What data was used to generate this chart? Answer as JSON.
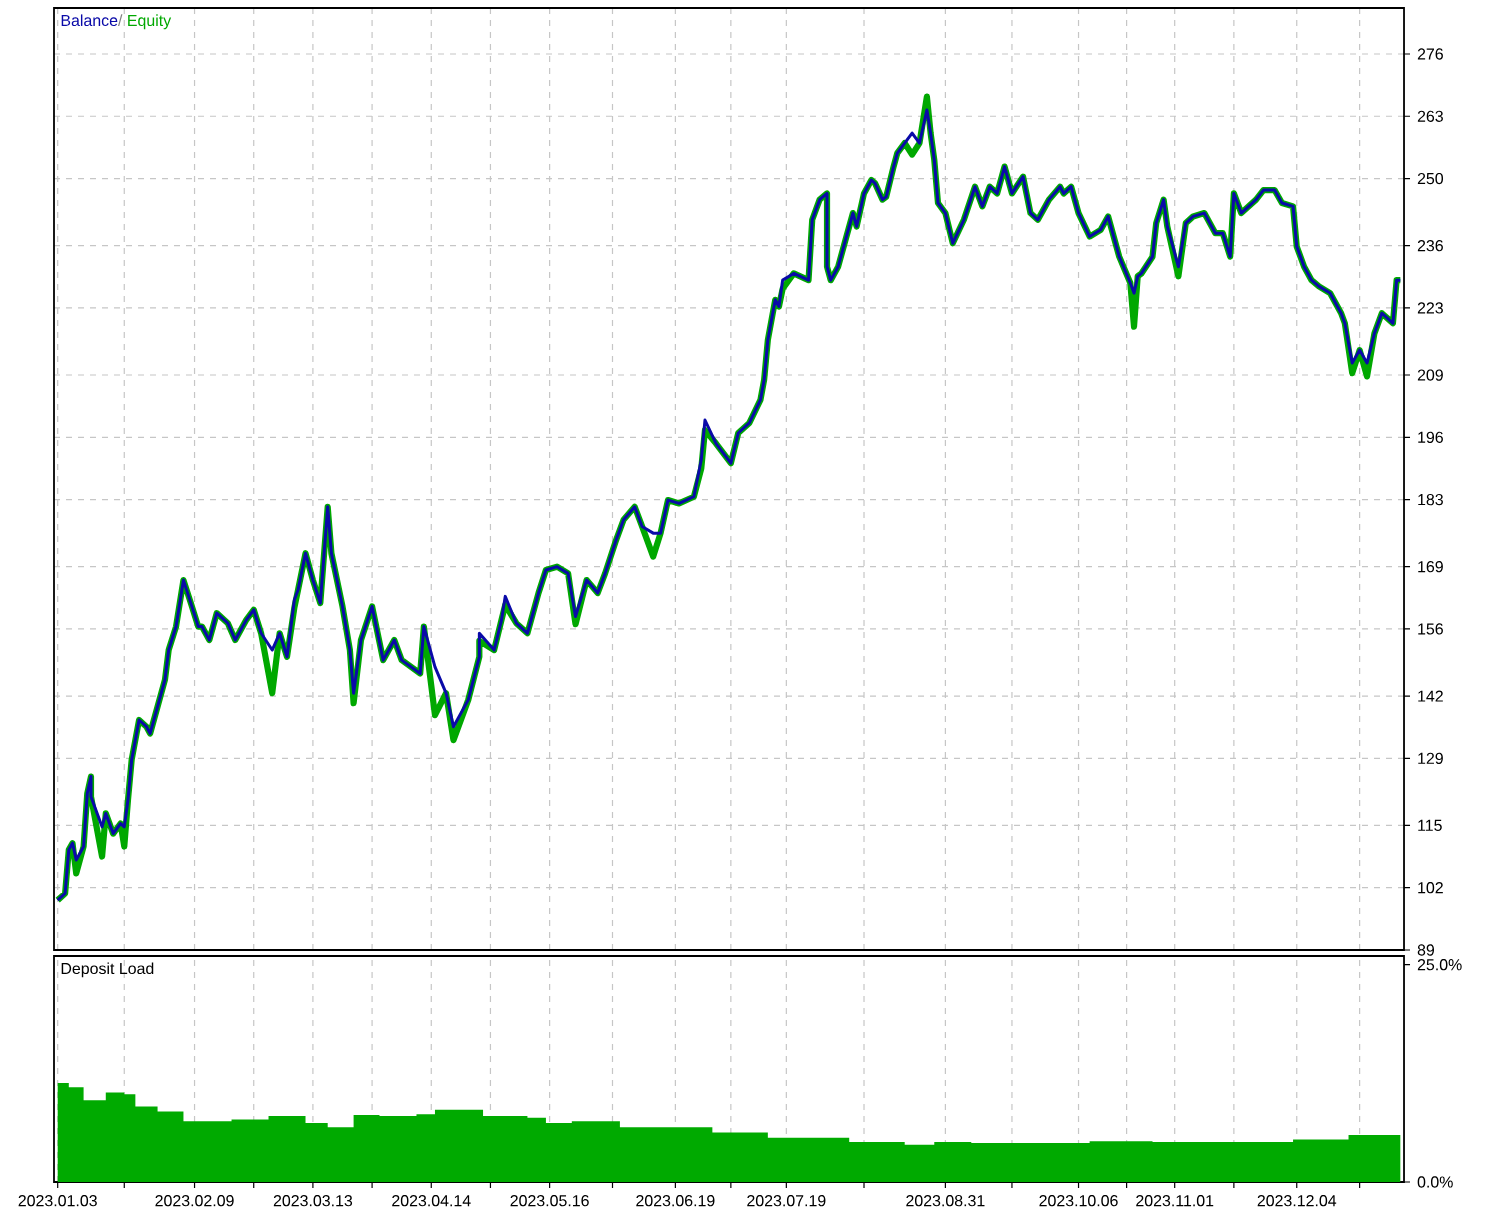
{
  "chart_data": [
    {
      "type": "line",
      "legend": "top left",
      "grid": true,
      "tick_labels": "y",
      "annotations": [
        "/"
      ],
      "x": [
        "2023-01-03",
        "2023-01-05",
        "2023-01-06",
        "2023-01-07",
        "2023-01-08",
        "2023-01-10",
        "2023-01-11",
        "2023-01-12",
        "2023-01-12",
        "2023-01-15",
        "2023-01-16",
        "2023-01-18",
        "2023-01-20",
        "2023-01-21",
        "2023-01-22",
        "2023-01-23",
        "2023-01-25",
        "2023-01-27",
        "2023-01-28",
        "2023-01-30",
        "2023-02-01",
        "2023-02-02",
        "2023-02-04",
        "2023-02-06",
        "2023-02-08",
        "2023-02-10",
        "2023-02-11",
        "2023-02-13",
        "2023-02-15",
        "2023-02-18",
        "2023-02-20",
        "2023-02-23",
        "2023-02-25",
        "2023-02-27",
        "2023-03-02",
        "2023-03-04",
        "2023-03-06",
        "2023-03-08",
        "2023-03-09",
        "2023-03-11",
        "2023-03-13",
        "2023-03-15",
        "2023-03-17",
        "2023-03-18",
        "2023-03-21",
        "2023-03-23",
        "2023-03-24",
        "2023-03-26",
        "2023-03-29",
        "2023-04-01",
        "2023-04-04",
        "2023-04-06",
        "2023-04-11",
        "2023-04-12",
        "2023-04-15",
        "2023-04-18",
        "2023-04-20",
        "2023-04-24",
        "2023-04-27",
        "2023-04-27",
        "2023-05-01",
        "2023-05-03",
        "2023-05-04",
        "2023-05-07",
        "2023-05-10",
        "2023-05-13",
        "2023-05-15",
        "2023-05-18",
        "2023-05-21",
        "2023-05-23",
        "2023-05-26",
        "2023-05-29",
        "2023-05-31",
        "2023-06-03",
        "2023-06-05",
        "2023-06-08",
        "2023-06-10",
        "2023-06-13",
        "2023-06-15",
        "2023-06-17",
        "2023-06-20",
        "2023-06-24",
        "2023-06-26",
        "2023-06-27",
        "2023-06-30",
        "2023-07-04",
        "2023-07-06",
        "2023-07-09",
        "2023-07-12",
        "2023-07-13",
        "2023-07-14",
        "2023-07-16",
        "2023-07-17",
        "2023-07-18",
        "2023-07-21",
        "2023-07-25",
        "2023-07-26",
        "2023-07-28",
        "2023-07-30",
        "2023-07-30",
        "2023-07-31",
        "2023-08-02",
        "2023-08-04",
        "2023-08-06",
        "2023-08-07",
        "2023-08-09",
        "2023-08-11",
        "2023-08-12",
        "2023-08-14",
        "2023-08-15",
        "2023-08-17",
        "2023-08-18",
        "2023-08-20",
        "2023-08-22",
        "2023-08-24",
        "2023-08-26",
        "2023-08-27",
        "2023-08-28",
        "2023-08-29",
        "2023-08-31",
        "2023-09-02",
        "2023-09-05",
        "2023-09-08",
        "2023-09-10",
        "2023-09-12",
        "2023-09-14",
        "2023-09-16",
        "2023-09-18",
        "2023-09-21",
        "2023-09-23",
        "2023-09-25",
        "2023-09-28",
        "2023-10-01",
        "2023-10-02",
        "2023-10-04",
        "2023-10-06",
        "2023-10-09",
        "2023-10-12",
        "2023-10-14",
        "2023-10-17",
        "2023-10-20",
        "2023-10-21",
        "2023-10-22",
        "2023-10-23",
        "2023-10-26",
        "2023-10-27",
        "2023-10-29",
        "2023-10-30",
        "2023-11-02",
        "2023-11-04",
        "2023-11-06",
        "2023-11-09",
        "2023-11-12",
        "2023-11-14",
        "2023-11-16",
        "2023-11-17",
        "2023-11-19",
        "2023-11-23",
        "2023-11-25",
        "2023-11-28",
        "2023-11-30",
        "2023-12-03",
        "2023-12-04",
        "2023-12-06",
        "2023-12-08",
        "2023-12-10",
        "2023-12-13",
        "2023-12-16",
        "2023-12-17",
        "2023-12-19",
        "2023-12-21",
        "2023-12-23",
        "2023-12-25",
        "2023-12-27",
        "2023-12-29",
        "2023-12-30",
        "2023-12-31",
        "2024-01-01"
      ],
      "series": [
        {
          "name": "Balance",
          "color": "#0a0aa8",
          "values": [
            99.4,
            100.8,
            109.9,
            111.3,
            107.8,
            110.6,
            121.7,
            125.2,
            121.0,
            114.7,
            117.5,
            113.3,
            115.4,
            114.7,
            120.3,
            128.7,
            137.0,
            135.6,
            134.2,
            139.8,
            145.4,
            151.6,
            156.5,
            166.2,
            161.4,
            156.5,
            156.5,
            153.7,
            159.3,
            157.2,
            153.7,
            157.9,
            160.0,
            155.1,
            151.6,
            155.1,
            150.2,
            162.1,
            164.2,
            171.8,
            166.2,
            161.4,
            181.5,
            171.8,
            160.7,
            151.6,
            142.6,
            153.7,
            160.7,
            149.5,
            153.7,
            149.5,
            146.7,
            156.5,
            148.1,
            142.6,
            135.6,
            141.2,
            150.2,
            155.1,
            151.6,
            157.9,
            162.8,
            157.2,
            155.1,
            163.5,
            168.3,
            169.0,
            167.6,
            158.6,
            166.2,
            163.5,
            167.6,
            174.6,
            178.8,
            181.5,
            177.4,
            176.0,
            176.0,
            182.9,
            182.2,
            183.6,
            191.3,
            199.6,
            194.7,
            190.6,
            196.9,
            199.0,
            203.8,
            208.0,
            216.3,
            224.7,
            223.3,
            228.8,
            230.2,
            228.8,
            241.4,
            245.6,
            246.9,
            231.6,
            228.8,
            231.6,
            237.2,
            242.8,
            240.0,
            246.9,
            249.7,
            249.0,
            245.6,
            246.2,
            252.5,
            255.3,
            257.4,
            259.5,
            257.4,
            264.3,
            259.5,
            253.9,
            244.9,
            242.8,
            236.5,
            241.4,
            248.3,
            244.2,
            248.3,
            246.9,
            252.5,
            246.9,
            250.4,
            242.8,
            241.4,
            245.6,
            248.3,
            246.9,
            248.3,
            242.8,
            237.9,
            239.3,
            242.1,
            233.7,
            228.2,
            226.1,
            229.6,
            230.2,
            233.7,
            240.7,
            245.6,
            240.0,
            231.6,
            240.7,
            242.1,
            242.8,
            238.6,
            238.6,
            233.7,
            246.9,
            242.8,
            245.6,
            247.6,
            247.6,
            244.9,
            244.2,
            235.8,
            231.6,
            228.8,
            227.5,
            226.1,
            221.9,
            219.8,
            211.5,
            214.2,
            211.5,
            217.7,
            221.9,
            220.5,
            219.8,
            228.8,
            228.8
          ]
        },
        {
          "name": "Equity",
          "color": "#00a800",
          "values": [
            99.4,
            100.8,
            109.9,
            111.3,
            105.0,
            110.6,
            121.7,
            125.2,
            121.0,
            108.5,
            117.5,
            113.3,
            115.4,
            110.6,
            120.3,
            128.7,
            137.0,
            135.6,
            134.2,
            139.8,
            145.4,
            151.6,
            156.5,
            166.2,
            161.4,
            156.5,
            156.5,
            153.7,
            159.3,
            157.2,
            153.7,
            157.9,
            160.0,
            155.1,
            142.6,
            155.1,
            150.2,
            160.5,
            164.2,
            171.8,
            166.2,
            161.4,
            181.5,
            171.8,
            160.7,
            151.6,
            140.5,
            153.7,
            160.7,
            149.5,
            153.7,
            149.5,
            146.7,
            156.5,
            138.0,
            142.6,
            132.8,
            141.2,
            150.2,
            153.5,
            151.6,
            157.9,
            161.0,
            157.2,
            155.1,
            163.5,
            168.3,
            169.0,
            167.6,
            157.0,
            166.2,
            163.5,
            167.6,
            174.6,
            178.8,
            181.5,
            177.4,
            171.1,
            176.0,
            182.9,
            182.2,
            183.6,
            189.5,
            197.5,
            194.7,
            190.6,
            196.9,
            199.0,
            203.8,
            208.0,
            216.3,
            224.7,
            223.3,
            227.0,
            230.2,
            228.8,
            241.4,
            245.6,
            246.9,
            231.6,
            228.8,
            231.6,
            237.2,
            242.8,
            240.0,
            246.9,
            249.7,
            249.0,
            245.6,
            246.2,
            252.5,
            255.3,
            257.4,
            255.0,
            257.4,
            267.1,
            259.5,
            253.9,
            244.9,
            242.8,
            236.5,
            241.4,
            248.3,
            244.2,
            248.3,
            246.9,
            252.5,
            246.9,
            250.4,
            242.8,
            241.4,
            245.6,
            248.3,
            246.9,
            248.3,
            242.8,
            237.9,
            239.3,
            242.1,
            233.7,
            228.2,
            219.1,
            229.6,
            230.2,
            233.7,
            240.7,
            245.6,
            240.0,
            229.6,
            240.7,
            242.1,
            242.8,
            238.6,
            238.6,
            233.7,
            246.9,
            242.8,
            245.6,
            247.6,
            247.6,
            244.9,
            244.2,
            235.8,
            231.6,
            228.8,
            227.5,
            226.1,
            221.9,
            219.8,
            209.4,
            214.2,
            208.7,
            217.7,
            221.9,
            220.5,
            219.8,
            228.8,
            228.8
          ]
        }
      ],
      "xlim": [
        "2023-01-02",
        "2024-01-02"
      ],
      "xticks": [
        {
          "value": "2023-01-03",
          "label": null
        },
        {
          "value": "2023-01-21",
          "label": null
        },
        {
          "value": "2023-02-09",
          "label": null
        },
        {
          "value": "2023-02-25",
          "label": null
        },
        {
          "value": "2023-03-13",
          "label": null
        },
        {
          "value": "2023-03-29",
          "label": null
        },
        {
          "value": "2023-04-14",
          "label": null
        },
        {
          "value": "2023-04-30",
          "label": null
        },
        {
          "value": "2023-05-16",
          "label": null
        },
        {
          "value": "2023-06-02",
          "label": null
        },
        {
          "value": "2023-06-19",
          "label": null
        },
        {
          "value": "2023-07-04",
          "label": null
        },
        {
          "value": "2023-07-19",
          "label": null
        },
        {
          "value": "2023-08-09",
          "label": null
        },
        {
          "value": "2023-08-31",
          "label": null
        },
        {
          "value": "2023-09-18",
          "label": null
        },
        {
          "value": "2023-10-06",
          "label": null
        },
        {
          "value": "2023-10-19",
          "label": null
        },
        {
          "value": "2023-11-01",
          "label": null
        },
        {
          "value": "2023-11-17",
          "label": null
        },
        {
          "value": "2023-12-04",
          "label": null
        },
        {
          "value": "2023-12-21",
          "label": null
        }
      ],
      "ylim": [
        89,
        285.6
      ],
      "yticks": [
        89,
        102,
        115,
        129,
        142,
        156,
        169,
        183,
        196,
        209,
        223,
        236,
        250,
        263,
        276
      ]
    },
    {
      "type": "area",
      "title": "Deposit Load",
      "grid": "x",
      "x": [
        "2023-01-03",
        "2023-01-06",
        "2023-01-10",
        "2023-01-16",
        "2023-01-21",
        "2023-01-24",
        "2023-01-30",
        "2023-02-06",
        "2023-02-19",
        "2023-03-01",
        "2023-03-11",
        "2023-03-17",
        "2023-03-24",
        "2023-03-31",
        "2023-04-10",
        "2023-04-15",
        "2023-04-21",
        "2023-04-28",
        "2023-05-10",
        "2023-05-15",
        "2023-05-22",
        "2023-06-04",
        "2023-06-24",
        "2023-06-29",
        "2023-07-14",
        "2023-07-26",
        "2023-08-05",
        "2023-08-20",
        "2023-08-28",
        "2023-09-07",
        "2023-10-06",
        "2023-10-09",
        "2023-10-26",
        "2023-11-20",
        "2023-12-03",
        "2023-12-18",
        "2024-01-01"
      ],
      "series": [
        {
          "color": "#00aa00",
          "values": [
            11.4,
            10.9,
            9.4,
            10.3,
            10.1,
            8.7,
            8.1,
            7.0,
            7.2,
            7.6,
            6.8,
            6.3,
            7.7,
            7.6,
            7.8,
            8.3,
            8.3,
            7.6,
            7.4,
            6.8,
            7.0,
            6.3,
            6.3,
            5.7,
            5.1,
            5.1,
            4.6,
            4.3,
            4.6,
            4.5,
            4.5,
            4.7,
            4.6,
            4.6,
            4.9,
            5.4,
            5.1
          ]
        }
      ],
      "xlim": [
        "2023-01-02",
        "2024-01-02"
      ],
      "xticks": [
        {
          "value": "2023-01-03",
          "label": "2023.01.03"
        },
        {
          "value": "2023-01-21",
          "label": null
        },
        {
          "value": "2023-02-09",
          "label": "2023.02.09"
        },
        {
          "value": "2023-02-25",
          "label": null
        },
        {
          "value": "2023-03-13",
          "label": "2023.03.13"
        },
        {
          "value": "2023-03-29",
          "label": null
        },
        {
          "value": "2023-04-14",
          "label": "2023.04.14"
        },
        {
          "value": "2023-04-30",
          "label": null
        },
        {
          "value": "2023-05-16",
          "label": "2023.05.16"
        },
        {
          "value": "2023-06-02",
          "label": null
        },
        {
          "value": "2023-06-19",
          "label": "2023.06.19"
        },
        {
          "value": "2023-07-04",
          "label": null
        },
        {
          "value": "2023-07-19",
          "label": "2023.07.19"
        },
        {
          "value": "2023-08-09",
          "label": null
        },
        {
          "value": "2023-08-31",
          "label": "2023.08.31"
        },
        {
          "value": "2023-09-18",
          "label": null
        },
        {
          "value": "2023-10-06",
          "label": "2023.10.06"
        },
        {
          "value": "2023-10-19",
          "label": null
        },
        {
          "value": "2023-11-01",
          "label": "2023.11.01"
        },
        {
          "value": "2023-11-17",
          "label": null
        },
        {
          "value": "2023-12-04",
          "label": "2023.12.04"
        },
        {
          "value": "2023-12-21",
          "label": null
        }
      ],
      "ylim": [
        0,
        26
      ],
      "yticks": [
        {
          "value": 0,
          "label": "0.0%"
        },
        {
          "value": 25,
          "label": "25.0%"
        }
      ]
    }
  ]
}
